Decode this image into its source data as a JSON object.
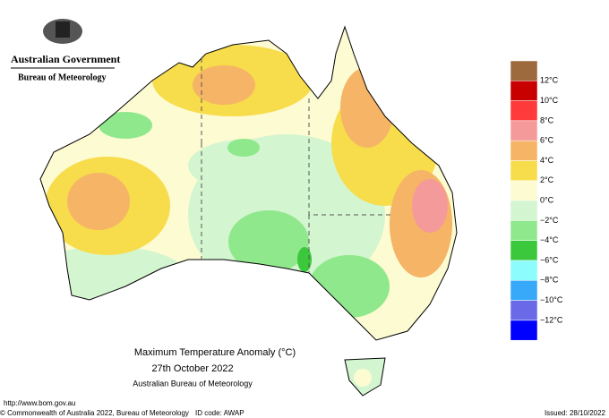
{
  "header": {
    "government": "Australian Government",
    "agency": "Bureau of Meteorology"
  },
  "map": {
    "title": "Maximum Temperature Anomaly (°C)",
    "date": "27th October 2022",
    "source": "Australian Bureau of Meteorology"
  },
  "legend": {
    "colors": [
      "#9c6a3c",
      "#c80000",
      "#ff3a3a",
      "#f59a9a",
      "#f5b466",
      "#f7dc4c",
      "#fdfbd2",
      "#d3f5cf",
      "#90e88c",
      "#3cc83c",
      "#8cfcfc",
      "#38a8f8",
      "#6a6ae8",
      "#0000ff"
    ],
    "labels": [
      "12°C",
      "10°C",
      "8°C",
      "6°C",
      "4°C",
      "2°C",
      "0°C",
      "−2°C",
      "−4°C",
      "−6°C",
      "−8°C",
      "−10°C",
      "−12°C"
    ]
  },
  "footer": {
    "url": "http://www.bom.gov.au",
    "copyright": "© Commonwealth of Australia 2022, Bureau of Meteorology",
    "id": "ID code: AWAP",
    "issued": "Issued: 28/10/2022"
  }
}
